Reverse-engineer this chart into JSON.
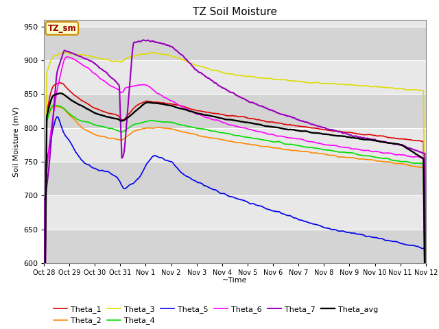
{
  "title": "TZ Soil Moisture",
  "xlabel": "~Time",
  "ylabel": "Soil Moisture (mV)",
  "ylim": [
    600,
    960
  ],
  "yticks": [
    600,
    650,
    700,
    750,
    800,
    850,
    900,
    950
  ],
  "xlim": [
    0,
    15
  ],
  "xtick_labels": [
    "Oct 28",
    "Oct 29",
    "Oct 30",
    "Oct 31",
    "Nov 1",
    "Nov 2",
    "Nov 3",
    "Nov 4",
    "Nov 5",
    "Nov 6",
    "Nov 7",
    "Nov 8",
    "Nov 9",
    "Nov 10",
    "Nov 11",
    "Nov 12"
  ],
  "xtick_positions": [
    0,
    1,
    2,
    3,
    4,
    5,
    6,
    7,
    8,
    9,
    10,
    11,
    12,
    13,
    14,
    15
  ],
  "plot_bg_color": "#e8e8e8",
  "label_box_text": "TZ_sm",
  "label_box_facecolor": "#ffffcc",
  "label_box_edgecolor": "#cc8800",
  "label_box_textcolor": "#990000",
  "colors": {
    "Theta_1": "#dd0000",
    "Theta_2": "#ff8800",
    "Theta_3": "#dddd00",
    "Theta_4": "#00dd00",
    "Theta_5": "#0000ee",
    "Theta_6": "#ff00ff",
    "Theta_7": "#9900bb",
    "Theta_avg": "#000000"
  },
  "linewidth": 1.2,
  "grid_color": "#ffffff",
  "band_colors": [
    "#d4d4d4",
    "#e8e8e8"
  ]
}
